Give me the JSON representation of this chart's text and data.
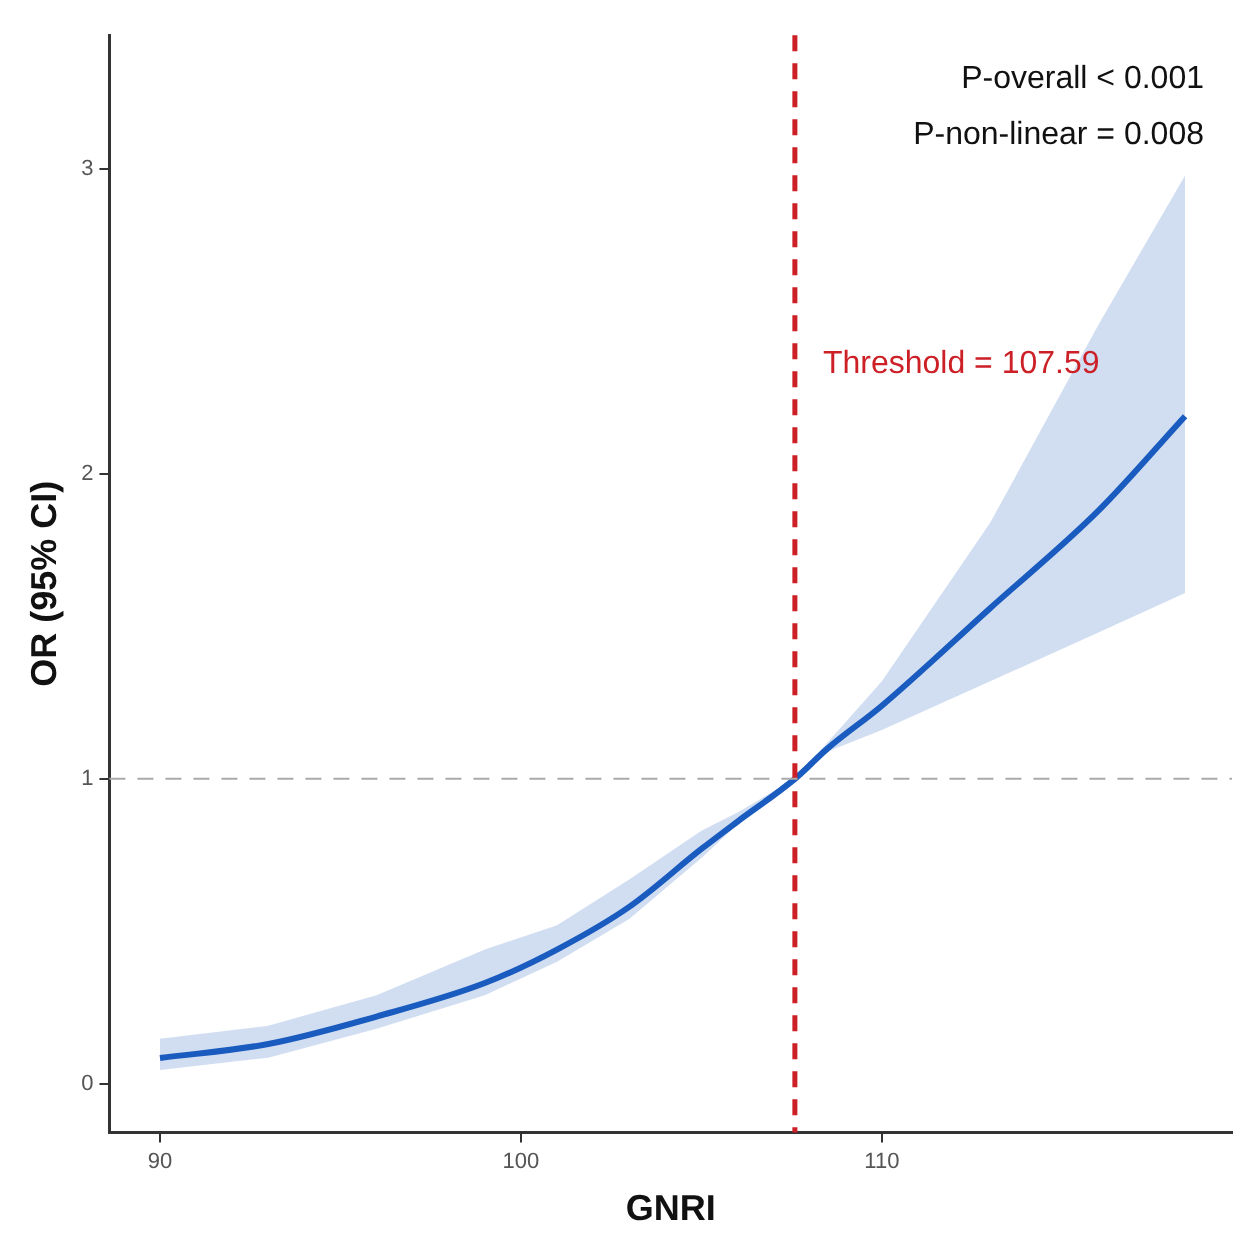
{
  "chart_data": {
    "type": "line",
    "xlabel": "GNRI",
    "ylabel": "OR (95% CI)",
    "x": [
      90,
      93,
      96,
      99,
      101,
      103,
      105,
      106,
      107.59,
      108.5,
      110,
      113,
      116,
      118.4
    ],
    "series": [
      {
        "color": "#1a5cbf",
        "values": [
          0.084,
          0.13,
          0.22,
          0.33,
          0.44,
          0.58,
          0.77,
          0.86,
          1,
          1.1,
          1.24,
          1.56,
          1.88,
          2.19
        ],
        "lower": [
          0.045,
          0.085,
          0.18,
          0.29,
          0.4,
          0.54,
          0.74,
          0.85,
          1,
          1.09,
          1.16,
          1.32,
          1.48,
          1.61
        ],
        "upper": [
          0.147,
          0.19,
          0.29,
          0.44,
          0.52,
          0.67,
          0.83,
          0.89,
          1,
          1.12,
          1.32,
          1.84,
          2.49,
          2.98
        ]
      }
    ],
    "xlim": [
      88.6,
      119.7
    ],
    "ylim": [
      -0.16,
      3.44
    ],
    "xticks": [
      90,
      100,
      110
    ],
    "yticks": [
      0,
      1,
      2,
      3
    ],
    "grid": false,
    "legend": false,
    "marker": "none",
    "line_style": "solid",
    "ref_lines": [
      {
        "axis": "x",
        "value": 107.59,
        "label": "Threshold = 107.59",
        "color": "#cc1f26",
        "line_style": "dashed"
      },
      {
        "axis": "y",
        "value": 1,
        "color": "#aaaaaa",
        "line_style": "dashed"
      }
    ],
    "annotations": [
      "P-overall < 0.001",
      "P-non-linear = 0.008"
    ]
  }
}
